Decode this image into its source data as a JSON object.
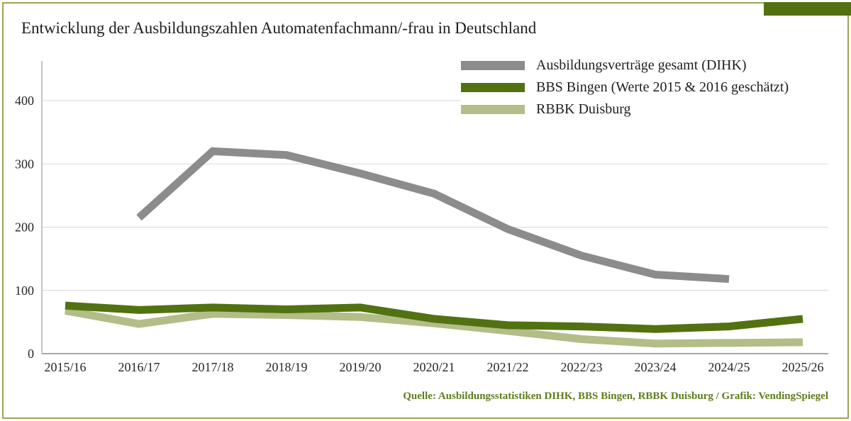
{
  "frame": {
    "border_color": "#97a65c",
    "corner_tab_color": "#527211"
  },
  "title": "Entwicklung der Ausbildungszahlen Automatenfachmann/-frau in Deutschland",
  "source_note": "Quelle: Ausbildungsstatistiken DIHK, BBS Bingen, RBBK Duisburg / Grafik: VendingSpiegel",
  "chart_data": {
    "type": "line",
    "title": "Entwicklung der Ausbildungszahlen Automatenfachmann/-frau in Deutschland",
    "categories": [
      "2015/16",
      "2016/17",
      "2017/18",
      "2018/19",
      "2019/20",
      "2020/21",
      "2021/22",
      "2022/23",
      "2023/24",
      "2024/25",
      "2025/26"
    ],
    "series": [
      {
        "name": "Ausbildungsverträge  gesamt (DIHK)",
        "color": "#8c8c8c",
        "values": [
          null,
          215,
          320,
          314,
          285,
          253,
          197,
          155,
          125,
          118,
          null
        ]
      },
      {
        "name": "BBS Bingen (Werte 2015 & 2016 geschätzt)",
        "color": "#527211",
        "values": [
          76,
          69,
          73,
          70,
          73,
          55,
          45,
          43,
          39,
          43,
          55
        ]
      },
      {
        "name": "RBBK Duisburg",
        "color": "#b2bd88",
        "values": [
          68,
          47,
          63,
          61,
          58,
          48,
          36,
          23,
          16,
          17,
          18
        ]
      }
    ],
    "xlabel": "",
    "ylabel": "",
    "ylim": [
      0,
      400
    ],
    "yticks": [
      0,
      100,
      200,
      300,
      400
    ],
    "grid": true,
    "legend_position": "top-right",
    "colors": {
      "gridline": "#d9d9d9",
      "x_axis": "#a6a6a6",
      "y_axis": "#b3b3b3",
      "tick_text": "#262626"
    }
  }
}
